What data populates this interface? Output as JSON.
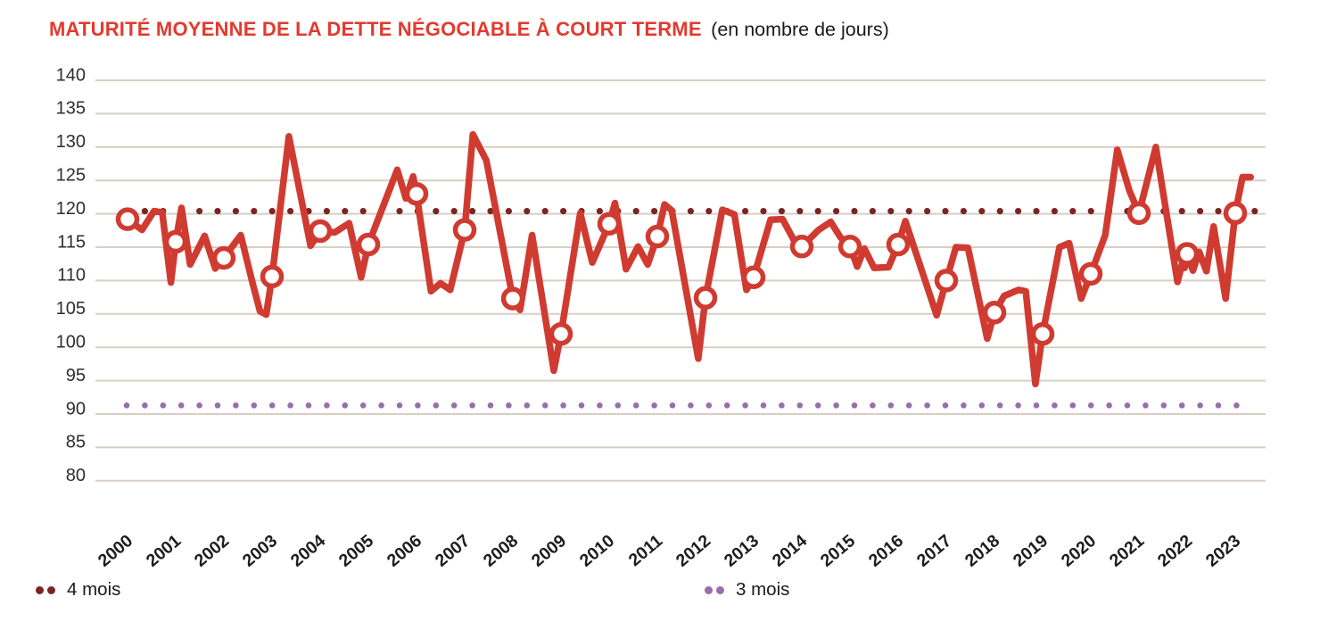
{
  "header": {
    "title": "MATURITÉ MOYENNE DE LA DETTE NÉGOCIABLE À COURT TERME",
    "subtitle": "(en nombre de jours)",
    "title_color": "#e23a2e"
  },
  "legend": {
    "items": [
      {
        "label": "4 mois",
        "color": "#7c2422"
      },
      {
        "label": "3 mois",
        "color": "#9b6dad"
      }
    ]
  },
  "chart_data": {
    "type": "line",
    "title": "MATURITÉ MOYENNE DE LA DETTE NÉGOCIABLE À COURT TERME (en nombre de jours)",
    "xlabel": "",
    "ylabel": "",
    "ylim": [
      80,
      140
    ],
    "yticks": [
      140,
      135,
      130,
      125,
      120,
      115,
      110,
      105,
      100,
      95,
      90,
      85,
      80
    ],
    "x_years": [
      2000,
      2001,
      2002,
      2003,
      2004,
      2005,
      2006,
      2007,
      2008,
      2009,
      2010,
      2011,
      2012,
      2013,
      2014,
      2015,
      2016,
      2017,
      2018,
      2019,
      2020,
      2021,
      2022,
      2023
    ],
    "grid": "horizontal",
    "gridline_color": "#d8cfc4",
    "legend_position": "bottom",
    "reference_lines": [
      {
        "label": "4 mois",
        "value": 120.4,
        "color": "#7c2422",
        "style": "dotted"
      },
      {
        "label": "3 mois",
        "value": 91.3,
        "color": "#9b6dad",
        "style": "dotted"
      }
    ],
    "series": [
      {
        "name": "Maturité moyenne de la dette négociable à court terme",
        "color": "#d03b31",
        "points": [
          [
            2000.0,
            119.2
          ],
          [
            2000.3,
            117.6
          ],
          [
            2000.55,
            120.4
          ],
          [
            2000.72,
            120.2
          ],
          [
            2000.9,
            109.7
          ],
          [
            2001.0,
            115.8
          ],
          [
            2001.12,
            120.9
          ],
          [
            2001.3,
            112.4
          ],
          [
            2001.6,
            116.7
          ],
          [
            2001.82,
            111.8
          ],
          [
            2002.0,
            113.4
          ],
          [
            2002.35,
            116.8
          ],
          [
            2002.6,
            109.5
          ],
          [
            2002.75,
            105.4
          ],
          [
            2002.88,
            104.9
          ],
          [
            2003.0,
            110.6
          ],
          [
            2003.35,
            131.6
          ],
          [
            2003.8,
            115.2
          ],
          [
            2004.0,
            117.4
          ],
          [
            2004.3,
            117.2
          ],
          [
            2004.6,
            118.6
          ],
          [
            2004.85,
            110.5
          ],
          [
            2005.0,
            115.4
          ],
          [
            2005.3,
            121.0
          ],
          [
            2005.6,
            126.6
          ],
          [
            2005.78,
            122.3
          ],
          [
            2005.93,
            125.6
          ],
          [
            2006.0,
            123.0
          ],
          [
            2006.3,
            108.4
          ],
          [
            2006.5,
            109.6
          ],
          [
            2006.7,
            108.6
          ],
          [
            2007.0,
            117.6
          ],
          [
            2007.17,
            131.9
          ],
          [
            2007.45,
            128.0
          ],
          [
            2008.0,
            107.3
          ],
          [
            2008.15,
            105.6
          ],
          [
            2008.4,
            116.8
          ],
          [
            2008.85,
            96.5
          ],
          [
            2009.0,
            102.0
          ],
          [
            2009.4,
            120.1
          ],
          [
            2009.65,
            112.7
          ],
          [
            2010.0,
            118.5
          ],
          [
            2010.12,
            121.6
          ],
          [
            2010.35,
            111.7
          ],
          [
            2010.6,
            115.1
          ],
          [
            2010.8,
            112.4
          ],
          [
            2011.0,
            116.6
          ],
          [
            2011.15,
            121.4
          ],
          [
            2011.3,
            120.5
          ],
          [
            2011.85,
            98.3
          ],
          [
            2012.0,
            107.4
          ],
          [
            2012.35,
            120.6
          ],
          [
            2012.6,
            119.9
          ],
          [
            2012.85,
            108.6
          ],
          [
            2013.0,
            110.5
          ],
          [
            2013.35,
            119.1
          ],
          [
            2013.6,
            119.2
          ],
          [
            2013.9,
            115.2
          ],
          [
            2014.0,
            115.1
          ],
          [
            2014.35,
            117.6
          ],
          [
            2014.6,
            118.8
          ],
          [
            2014.8,
            116.5
          ],
          [
            2015.0,
            115.1
          ],
          [
            2015.15,
            112.1
          ],
          [
            2015.3,
            114.8
          ],
          [
            2015.5,
            111.9
          ],
          [
            2015.8,
            112.0
          ],
          [
            2016.0,
            115.4
          ],
          [
            2016.15,
            118.9
          ],
          [
            2016.8,
            104.8
          ],
          [
            2017.0,
            110.0
          ],
          [
            2017.2,
            115.0
          ],
          [
            2017.45,
            114.9
          ],
          [
            2017.85,
            101.3
          ],
          [
            2018.0,
            105.2
          ],
          [
            2018.2,
            107.7
          ],
          [
            2018.5,
            108.6
          ],
          [
            2018.65,
            108.4
          ],
          [
            2018.85,
            94.5
          ],
          [
            2019.0,
            102.0
          ],
          [
            2019.35,
            115.0
          ],
          [
            2019.55,
            115.6
          ],
          [
            2019.8,
            107.3
          ],
          [
            2020.0,
            111.0
          ],
          [
            2020.3,
            116.8
          ],
          [
            2020.55,
            129.6
          ],
          [
            2020.8,
            123.5
          ],
          [
            2021.0,
            120.1
          ],
          [
            2021.35,
            130.0
          ],
          [
            2021.8,
            109.8
          ],
          [
            2021.9,
            112.6
          ],
          [
            2021.95,
            111.9
          ],
          [
            2022.0,
            114.0
          ],
          [
            2022.12,
            111.5
          ],
          [
            2022.25,
            114.3
          ],
          [
            2022.4,
            111.4
          ],
          [
            2022.55,
            118.1
          ],
          [
            2022.8,
            107.3
          ],
          [
            2023.0,
            120.1
          ],
          [
            2023.15,
            125.5
          ],
          [
            2023.32,
            125.5
          ]
        ]
      }
    ],
    "year_markers": [
      {
        "year": 2000,
        "value": 119.2
      },
      {
        "year": 2001,
        "value": 115.8
      },
      {
        "year": 2002,
        "value": 113.4
      },
      {
        "year": 2003,
        "value": 110.6
      },
      {
        "year": 2004,
        "value": 117.4
      },
      {
        "year": 2005,
        "value": 115.4
      },
      {
        "year": 2006,
        "value": 123.0
      },
      {
        "year": 2007,
        "value": 117.6
      },
      {
        "year": 2008,
        "value": 107.3
      },
      {
        "year": 2009,
        "value": 102.0
      },
      {
        "year": 2010,
        "value": 118.5
      },
      {
        "year": 2011,
        "value": 116.6
      },
      {
        "year": 2012,
        "value": 107.4
      },
      {
        "year": 2013,
        "value": 110.5
      },
      {
        "year": 2014,
        "value": 115.1
      },
      {
        "year": 2015,
        "value": 115.1
      },
      {
        "year": 2016,
        "value": 115.4
      },
      {
        "year": 2017,
        "value": 110.0
      },
      {
        "year": 2018,
        "value": 105.2
      },
      {
        "year": 2019,
        "value": 102.0
      },
      {
        "year": 2020,
        "value": 111.0
      },
      {
        "year": 2021,
        "value": 120.1
      },
      {
        "year": 2022,
        "value": 114.0
      },
      {
        "year": 2023,
        "value": 120.1
      }
    ]
  }
}
